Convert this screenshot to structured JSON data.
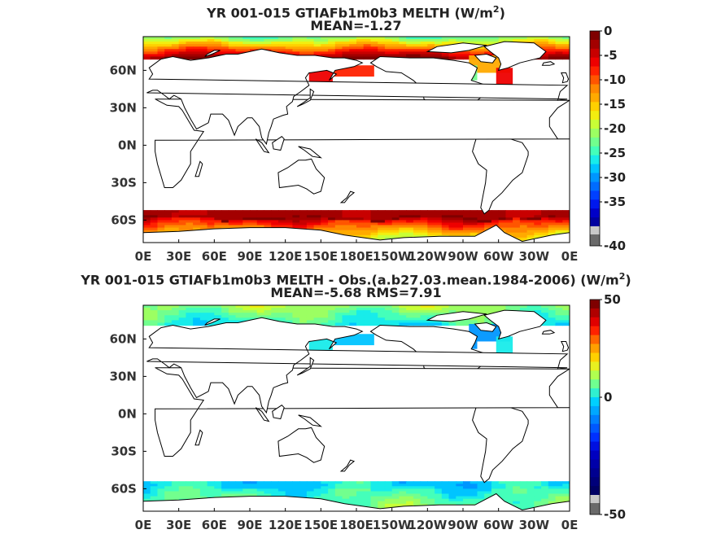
{
  "chart_data": [
    {
      "type": "heatmap",
      "title_pre": "YR 001-015 GTIAFb1m0b3  MELTH (W/m",
      "title_sup": "2",
      "title_post": ")",
      "subtitle": "MEAN=-1.27",
      "x_tick_labels": [
        "0E",
        "30E",
        "60E",
        "90E",
        "120E",
        "150E",
        "180E",
        "150W",
        "120W",
        "90W",
        "60W",
        "30W",
        "0E"
      ],
      "y_tick_labels": [
        "60N",
        "30N",
        "0N",
        "30S",
        "60S"
      ],
      "y_tick_values": [
        60,
        30,
        0,
        -30,
        -60
      ],
      "xlim": [
        0,
        360
      ],
      "ylim": [
        -78,
        87
      ],
      "colorbar": {
        "min": -40,
        "max": 0,
        "ticks": [
          0,
          -5,
          -10,
          -15,
          -20,
          -25,
          -30,
          -35,
          -40
        ]
      }
    },
    {
      "type": "heatmap",
      "title_pre": "YR 001-015 GTIAFb1m0b3 MELTH - Obs.(a.b27.03.mean.1984-2006) (W/m",
      "title_sup": "2",
      "title_post": ")",
      "subtitle": "MEAN=-5.68 RMS=7.91",
      "x_tick_labels": [
        "0E",
        "30E",
        "60E",
        "90E",
        "120E",
        "150E",
        "180E",
        "150W",
        "120W",
        "90W",
        "60W",
        "30W",
        "0E"
      ],
      "y_tick_labels": [
        "60N",
        "30N",
        "0N",
        "30S",
        "60S"
      ],
      "y_tick_values": [
        60,
        30,
        0,
        -30,
        -60
      ],
      "xlim": [
        0,
        360
      ],
      "ylim": [
        -78,
        87
      ],
      "colorbar": {
        "min": -50,
        "max": 50,
        "ticks": [
          50,
          0,
          -50
        ]
      }
    }
  ]
}
